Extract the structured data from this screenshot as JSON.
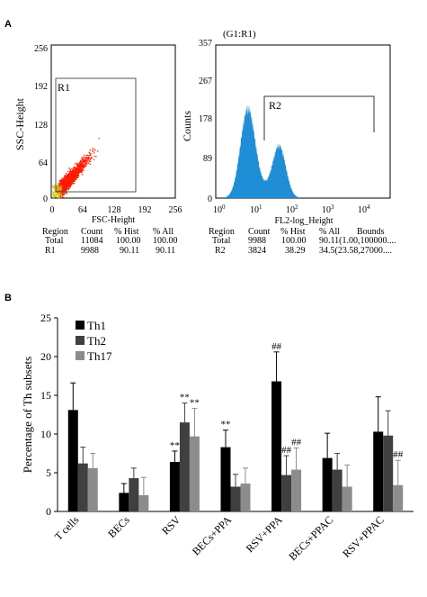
{
  "panel_a": {
    "label": "A",
    "scatter": {
      "ylabel": "SSC-Height",
      "xlabel": "FSC-Height",
      "ticks": [
        "0",
        "64",
        "128",
        "192",
        "256"
      ],
      "gate_label": "R1",
      "stats": {
        "headers": [
          "Region",
          "Count",
          "% Hist",
          "% All"
        ],
        "rows": [
          [
            "Total",
            "11084",
            "100.00",
            "100.00"
          ],
          [
            "R1",
            "9988",
            "90.11",
            "90.11"
          ]
        ]
      }
    },
    "histogram": {
      "title": "(G1:R1)",
      "ylabel": "Counts",
      "xlabel": "FL2-log_Height",
      "yticks": [
        "0",
        "89",
        "178",
        "267",
        "357"
      ],
      "xticks": [
        {
          "base": "10",
          "exp": "0"
        },
        {
          "base": "10",
          "exp": "1"
        },
        {
          "base": "10",
          "exp": "2"
        },
        {
          "base": "10",
          "exp": "3"
        },
        {
          "base": "10",
          "exp": "4"
        }
      ],
      "gate_label": "R2",
      "fill_color": "#1f8ed6",
      "stats": {
        "headers": [
          "Region",
          "Count",
          "% Hist",
          "% All",
          "Bounds"
        ],
        "rows": [
          [
            "Total",
            "9988",
            "100.00",
            "90.11(1.00,100000...."
          ],
          [
            "R2",
            "3824",
            "38.29",
            "34.5(23.58,27000...."
          ]
        ]
      }
    }
  },
  "panel_b": {
    "label": "B"
  },
  "chart_data": {
    "type": "bar",
    "ylabel": "Percentage of Th subsets",
    "ylim": [
      0,
      25
    ],
    "yticks": [
      "0",
      "5",
      "10",
      "15",
      "20",
      "25"
    ],
    "categories": [
      "T cells",
      "BECs",
      "RSV",
      "BECs+PPA",
      "RSV+PPA",
      "BECs+PPAC",
      "RSV+PPAC"
    ],
    "legend_position": "top-left",
    "series": [
      {
        "name": "Th1",
        "color": "#000000",
        "values": [
          13.1,
          2.4,
          6.4,
          8.3,
          16.8,
          6.9,
          10.3
        ],
        "errors": [
          3.5,
          1.2,
          1.4,
          2.2,
          3.8,
          3.2,
          4.5
        ],
        "annotations": [
          "",
          "",
          "**",
          "**",
          "##",
          "",
          ""
        ]
      },
      {
        "name": "Th2",
        "color": "#404040",
        "values": [
          6.2,
          4.3,
          11.5,
          3.2,
          4.7,
          5.4,
          9.8
        ],
        "errors": [
          2.1,
          1.3,
          2.5,
          1.6,
          2.5,
          2.1,
          3.2
        ],
        "annotations": [
          "",
          "",
          "**",
          "",
          "##",
          "",
          ""
        ]
      },
      {
        "name": "Th17",
        "color": "#8c8c8c",
        "values": [
          5.6,
          2.1,
          9.7,
          3.6,
          5.4,
          3.2,
          3.4
        ],
        "errors": [
          1.9,
          2.3,
          3.6,
          2.0,
          2.8,
          2.8,
          3.2
        ],
        "annotations": [
          "",
          "",
          "**",
          "",
          "##",
          "",
          "##"
        ]
      }
    ]
  }
}
